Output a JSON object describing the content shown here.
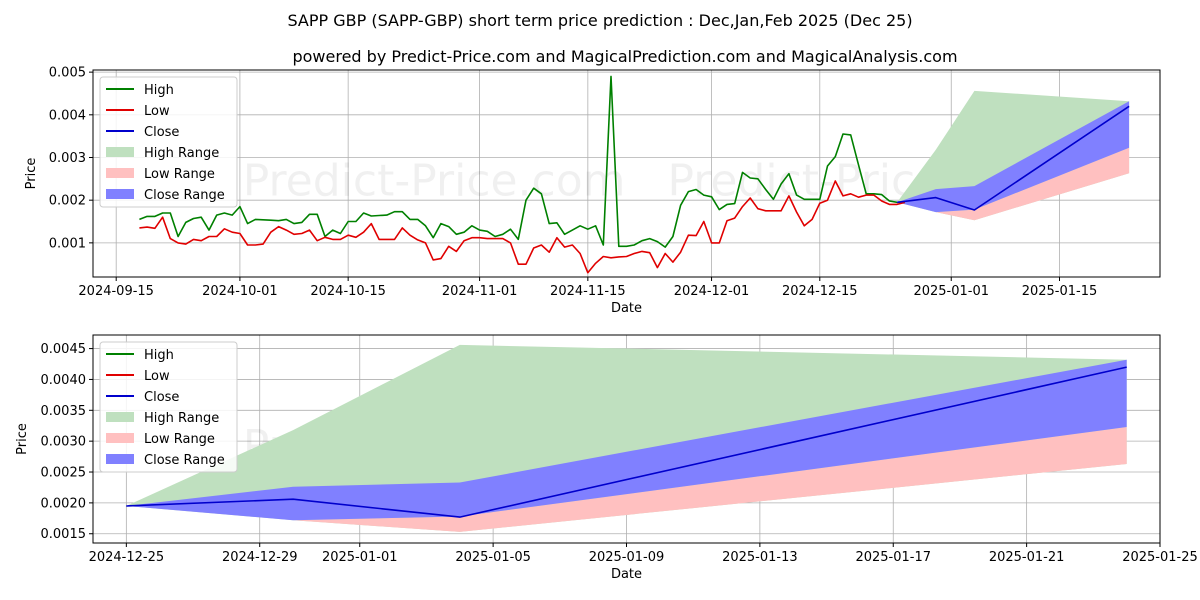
{
  "title": "SAPP GBP (SAPP-GBP) short term price prediction : Dec,Jan,Feb 2025 (Dec 25)",
  "subtitle": "powered by Predict-Price.com and MagicalPrediction.com and MagicalAnalysis.com",
  "watermark": "Predict-Price.com   Predict-Price.com",
  "colors": {
    "high": "#008000",
    "low": "#e00000",
    "close": "#0000cc",
    "high_range": "#bfe0bf",
    "low_range": "#ffc0c0",
    "close_range": "#8080ff"
  },
  "chart_data": [
    {
      "type": "line",
      "xlabel": "Date",
      "ylabel": "Price",
      "xlim": [
        "2024-09-12",
        "2025-01-28"
      ],
      "ylim": [
        0.0002,
        0.00505
      ],
      "x_ticks": [
        "2024-09-15",
        "2024-10-01",
        "2024-10-15",
        "2024-11-01",
        "2024-11-15",
        "2024-12-01",
        "2024-12-15",
        "2025-01-01",
        "2025-01-15"
      ],
      "y_ticks": [
        "0.001",
        "0.002",
        "0.003",
        "0.004",
        "0.005"
      ],
      "legend": [
        "High",
        "Low",
        "High Range",
        "Low Range",
        "Close Range",
        "Close"
      ],
      "legend_order": [
        "High",
        "Low",
        "Close",
        "High Range",
        "Low Range",
        "Close Range"
      ],
      "history_start": "2024-09-18",
      "history": {
        "high": [
          0.00155,
          0.00162,
          0.00162,
          0.0017,
          0.0017,
          0.00115,
          0.00148,
          0.00157,
          0.0016,
          0.0013,
          0.00165,
          0.0017,
          0.00165,
          0.00185,
          0.00145,
          0.00155,
          0.00154,
          0.00153,
          0.00152,
          0.00155,
          0.00145,
          0.00148,
          0.00167,
          0.00167,
          0.00115,
          0.0013,
          0.00122,
          0.0015,
          0.0015,
          0.0017,
          0.00163,
          0.00164,
          0.00165,
          0.00173,
          0.00173,
          0.00155,
          0.00155,
          0.0014,
          0.00112,
          0.00145,
          0.00138,
          0.0012,
          0.00125,
          0.0014,
          0.0013,
          0.00127,
          0.00115,
          0.0012,
          0.00132,
          0.00108,
          0.002,
          0.00228,
          0.00215,
          0.00145,
          0.00147,
          0.0012,
          0.0013,
          0.0014,
          0.00132,
          0.0014,
          0.00095,
          0.0049,
          0.00092,
          0.00092,
          0.00095,
          0.00105,
          0.0011,
          0.00103,
          0.0009,
          0.00115,
          0.00188,
          0.0022,
          0.00225,
          0.00212,
          0.00208,
          0.00178,
          0.0019,
          0.00192,
          0.00265,
          0.00252,
          0.0025,
          0.00225,
          0.00202,
          0.00238,
          0.00262,
          0.00212,
          0.00202,
          0.00202,
          0.00202,
          0.0028,
          0.00302,
          0.00355,
          0.00353,
          0.00283,
          0.00215,
          0.00215,
          0.00213,
          0.00198,
          0.00195,
          0.00195
        ],
        "low": [
          0.00135,
          0.00137,
          0.00134,
          0.0016,
          0.0011,
          0.001,
          0.00097,
          0.00108,
          0.00105,
          0.00115,
          0.00115,
          0.00133,
          0.00125,
          0.00122,
          0.00095,
          0.00095,
          0.00097,
          0.00125,
          0.00138,
          0.0013,
          0.0012,
          0.00122,
          0.0013,
          0.00105,
          0.00113,
          0.00108,
          0.00108,
          0.00118,
          0.00113,
          0.00125,
          0.00145,
          0.00108,
          0.00108,
          0.00108,
          0.00135,
          0.00118,
          0.00107,
          0.001,
          0.0006,
          0.00063,
          0.00092,
          0.0008,
          0.00105,
          0.00112,
          0.00112,
          0.0011,
          0.0011,
          0.0011,
          0.001,
          0.0005,
          0.0005,
          0.00088,
          0.00095,
          0.00078,
          0.00112,
          0.0009,
          0.00095,
          0.00075,
          0.0003,
          0.00052,
          0.00068,
          0.00065,
          0.00067,
          0.00068,
          0.00075,
          0.0008,
          0.00077,
          0.00042,
          0.00075,
          0.00055,
          0.00078,
          0.00118,
          0.00117,
          0.0015,
          0.001,
          0.001,
          0.00152,
          0.00158,
          0.00185,
          0.00205,
          0.0018,
          0.00175,
          0.00175,
          0.00175,
          0.0021,
          0.00172,
          0.0014,
          0.00155,
          0.00193,
          0.002,
          0.00245,
          0.0021,
          0.00215,
          0.00207,
          0.00212,
          0.00212,
          0.00198,
          0.0019,
          0.0019,
          0.00195
        ]
      },
      "forecast": {
        "dates": [
          "2024-12-25",
          "2024-12-30",
          "2025-01-04",
          "2025-01-24"
        ],
        "close": [
          0.00195,
          0.00206,
          0.00177,
          0.0042
        ],
        "high_range_upper": [
          0.00195,
          0.00318,
          0.00456,
          0.00432
        ],
        "low_range_lower": [
          0.00195,
          0.00172,
          0.00153,
          0.00263
        ],
        "low_range_upper": [
          0.00195,
          0.00172,
          0.00178,
          0.00323
        ],
        "close_range_lower": [
          0.00195,
          0.00172,
          0.00178,
          0.00323
        ],
        "close_range_upper": [
          0.00195,
          0.00226,
          0.00233,
          0.00432
        ]
      }
    },
    {
      "type": "line",
      "xlabel": "Date",
      "ylabel": "Price",
      "xlim": [
        "2024-12-24",
        "2025-01-25"
      ],
      "ylim": [
        0.00135,
        0.00472
      ],
      "x_ticks": [
        "2024-12-25",
        "2024-12-29",
        "2025-01-01",
        "2025-01-05",
        "2025-01-09",
        "2025-01-13",
        "2025-01-17",
        "2025-01-21",
        "2025-01-25"
      ],
      "y_ticks": [
        "0.0015",
        "0.0020",
        "0.0025",
        "0.0030",
        "0.0035",
        "0.0040",
        "0.0045"
      ],
      "legend": [
        "High Range",
        "Low Range",
        "Close Range",
        "Close"
      ],
      "legend_order": [
        "High",
        "Low",
        "Close",
        "High Range",
        "Low Range",
        "Close Range"
      ]
    }
  ]
}
